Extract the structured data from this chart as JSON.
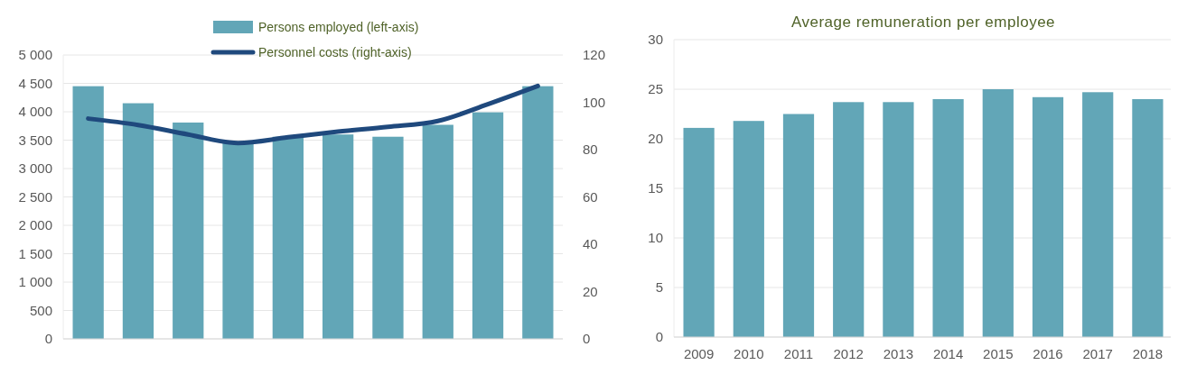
{
  "chart_data": [
    {
      "type": "bar",
      "categories": [
        null,
        null,
        null,
        null,
        null,
        null,
        null,
        null,
        null,
        null
      ],
      "series": [
        {
          "name": "Persons employed (left-axis)",
          "color": "#62a6b7",
          "values": [
            4450,
            4150,
            3810,
            3450,
            3560,
            3600,
            3560,
            3770,
            3990,
            4450
          ]
        },
        {
          "name": "Personnel costs (right-axis)",
          "type": "line",
          "axis": "y2",
          "color": "#1f497d",
          "values": [
            93.1,
            90.4,
            86.4,
            82.8,
            85.2,
            87.6,
            89.6,
            92.1,
            99.2,
            106.9
          ]
        }
      ],
      "ylim": [
        0,
        5000
      ],
      "yticks": [
        {
          "value": 0,
          "label": "0"
        },
        {
          "value": 500,
          "label": "500"
        },
        {
          "value": 1000,
          "label": "1 000"
        },
        {
          "value": 1500,
          "label": "1 500"
        },
        {
          "value": 2000,
          "label": "2 000"
        },
        {
          "value": 2500,
          "label": "2 500"
        },
        {
          "value": 3000,
          "label": "3 000"
        },
        {
          "value": 3500,
          "label": "3 500"
        },
        {
          "value": 4000,
          "label": "4 000"
        },
        {
          "value": 4500,
          "label": "4 500"
        },
        {
          "value": 5000,
          "label": "5 000"
        }
      ],
      "y2lim": [
        0,
        120
      ],
      "y2ticks": [
        0,
        20,
        40,
        60,
        80,
        100,
        120
      ],
      "grid": "y",
      "legend": "top"
    },
    {
      "type": "bar",
      "title": "Average remuneration per employee",
      "categories": [
        "2009",
        "2010",
        "2011",
        "2012",
        "2013",
        "2014",
        "2015",
        "2016",
        "2017",
        "2018"
      ],
      "values": [
        21.1,
        21.8,
        22.5,
        23.7,
        23.7,
        24.0,
        25.0,
        24.2,
        24.7,
        24.0
      ],
      "color": "#62a6b7",
      "ylim": [
        0,
        30
      ],
      "yticks": [
        0,
        5,
        10,
        15,
        20,
        25,
        30
      ],
      "grid": "y"
    }
  ]
}
